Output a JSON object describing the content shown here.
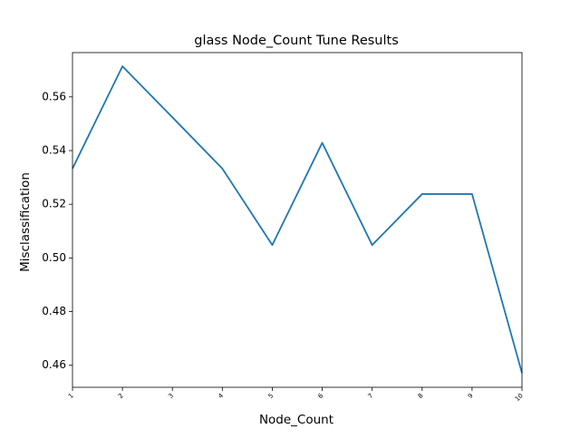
{
  "chart_data": {
    "type": "line",
    "title": "glass Node_Count Tune Results",
    "xlabel": "Node_Count",
    "ylabel": "Misclassification",
    "x": [
      1,
      2,
      3,
      4,
      5,
      6,
      7,
      8,
      9,
      10
    ],
    "x_tick_labels": [
      "1",
      "2",
      "3",
      "4",
      "5",
      "6",
      "7",
      "8",
      "9",
      "10"
    ],
    "xlim": [
      1,
      10
    ],
    "ylim": [
      0.4518,
      0.5765
    ],
    "y_ticks": [
      0.46,
      0.48,
      0.5,
      0.52,
      0.54,
      0.56
    ],
    "y_tick_labels": [
      "0.46",
      "0.48",
      "0.50",
      "0.52",
      "0.54",
      "0.56"
    ],
    "grid": false,
    "series": [
      {
        "values": [
          0.5333,
          0.5714,
          0.5524,
          0.5333,
          0.5048,
          0.5429,
          0.5048,
          0.5238,
          0.5238,
          0.4571
        ],
        "color": "#1f77b4"
      }
    ]
  }
}
